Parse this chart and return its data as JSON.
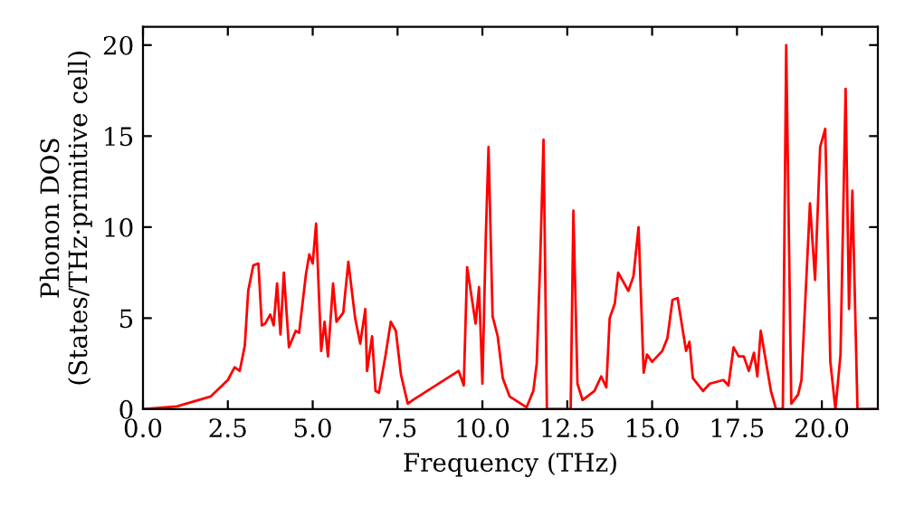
{
  "chart_data": {
    "type": "line",
    "xlabel": "Frequency (THz)",
    "ylabel": "Phonon DOS\n(States/THz·primitive cell)",
    "x": [
      0,
      1,
      2,
      2.5,
      2.7,
      2.85,
      3.0,
      3.1,
      3.25,
      3.4,
      3.5,
      3.6,
      3.75,
      3.85,
      3.95,
      4.05,
      4.15,
      4.3,
      4.5,
      4.6,
      4.8,
      4.9,
      5.0,
      5.1,
      5.25,
      5.35,
      5.45,
      5.6,
      5.7,
      5.9,
      6.05,
      6.25,
      6.4,
      6.55,
      6.6,
      6.75,
      6.85,
      6.95,
      7.15,
      7.3,
      7.45,
      7.6,
      7.8,
      7.95,
      9.3,
      9.45,
      9.55,
      9.8,
      9.9,
      10.0,
      10.1,
      10.18,
      10.3,
      10.45,
      10.6,
      10.8,
      11.3,
      11.5,
      11.6,
      11.7,
      11.8,
      11.9,
      12.6,
      12.68,
      12.8,
      12.95,
      13.3,
      13.5,
      13.65,
      13.75,
      13.9,
      14.0,
      14.3,
      14.45,
      14.6,
      14.75,
      14.85,
      15.0,
      15.3,
      15.45,
      15.6,
      15.75,
      16.0,
      16.1,
      16.2,
      16.5,
      16.7,
      17.1,
      17.25,
      17.4,
      17.55,
      17.7,
      17.85,
      18.0,
      18.1,
      18.2,
      18.5,
      18.65,
      18.85,
      18.95,
      19.1,
      19.3,
      19.4,
      19.65,
      19.8,
      19.95,
      20.1,
      20.25,
      20.4,
      20.55,
      20.7,
      20.8,
      20.9,
      21.05,
      21.65
    ],
    "series": [
      {
        "color": "#ff0000",
        "values": [
          0,
          0.15,
          0.7,
          1.6,
          2.3,
          2.1,
          3.5,
          6.5,
          7.9,
          8.0,
          4.6,
          4.7,
          5.2,
          4.6,
          6.9,
          4.1,
          7.5,
          3.4,
          4.3,
          4.2,
          7.4,
          8.5,
          8.0,
          10.2,
          3.2,
          4.8,
          2.9,
          6.9,
          4.8,
          5.3,
          8.1,
          5.0,
          3.6,
          5.5,
          2.1,
          4.0,
          1.0,
          0.9,
          3.0,
          4.8,
          4.3,
          1.9,
          0.3,
          0.5,
          2.1,
          1.3,
          7.8,
          4.7,
          6.7,
          1.4,
          9.5,
          14.4,
          5.1,
          4.0,
          1.7,
          0.7,
          0.1,
          1.0,
          2.5,
          8.0,
          14.8,
          0,
          0,
          10.9,
          1.4,
          0.5,
          1.0,
          1.8,
          1.2,
          5.0,
          5.8,
          7.5,
          6.5,
          7.3,
          10.0,
          2.0,
          3.0,
          2.6,
          3.2,
          3.9,
          6.0,
          6.1,
          3.2,
          3.7,
          1.7,
          1.0,
          1.4,
          1.6,
          1.3,
          3.4,
          2.9,
          2.9,
          2.1,
          3.1,
          1.8,
          4.3,
          1.0,
          0,
          0,
          20.0,
          0.3,
          0.8,
          1.6,
          11.3,
          7.1,
          14.4,
          15.4,
          2.6,
          0,
          3.0,
          17.6,
          5.5,
          12.0,
          0,
          0
        ]
      }
    ],
    "xlim": [
      0,
      21.65
    ],
    "ylim": [
      0,
      21
    ],
    "xticks": [
      {
        "value": 0,
        "label": "0.0"
      },
      {
        "value": 2.5,
        "label": "2.5"
      },
      {
        "value": 5,
        "label": "5.0"
      },
      {
        "value": 7.5,
        "label": "7.5"
      },
      {
        "value": 10,
        "label": "10.0"
      },
      {
        "value": 12.5,
        "label": "12.5"
      },
      {
        "value": 15,
        "label": "15.0"
      },
      {
        "value": 17.5,
        "label": "17.5"
      },
      {
        "value": 20,
        "label": "20.0"
      }
    ],
    "yticks": [
      0,
      5,
      10,
      15,
      20
    ],
    "grid": false,
    "legend": false
  }
}
